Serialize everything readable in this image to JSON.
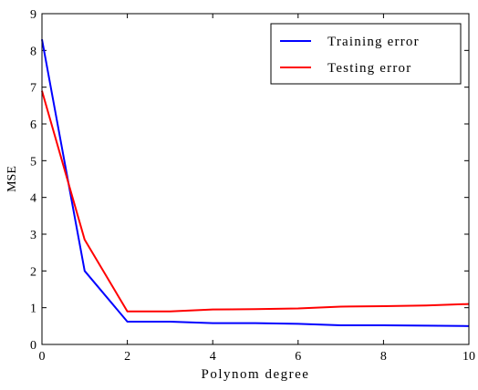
{
  "chart_data": {
    "type": "line",
    "title": "",
    "xlabel": "Polynom degree",
    "ylabel": "MSE",
    "xlim": [
      0,
      10
    ],
    "ylim": [
      0,
      9
    ],
    "x_ticks": [
      "0",
      "2",
      "4",
      "6",
      "8",
      "10"
    ],
    "y_ticks": [
      "0",
      "1",
      "2",
      "3",
      "4",
      "5",
      "6",
      "7",
      "8",
      "9"
    ],
    "grid": false,
    "legend_position": "top-right",
    "x": [
      0,
      1,
      2,
      3,
      4,
      5,
      6,
      7,
      8,
      9,
      10
    ],
    "series": [
      {
        "name": "Training error",
        "color": "#0000ff",
        "values": [
          8.3,
          2.0,
          0.62,
          0.62,
          0.58,
          0.58,
          0.56,
          0.52,
          0.52,
          0.51,
          0.5
        ]
      },
      {
        "name": "Testing error",
        "color": "#ff0000",
        "values": [
          6.9,
          2.85,
          0.9,
          0.9,
          0.95,
          0.96,
          0.98,
          1.03,
          1.04,
          1.06,
          1.1
        ]
      }
    ]
  }
}
